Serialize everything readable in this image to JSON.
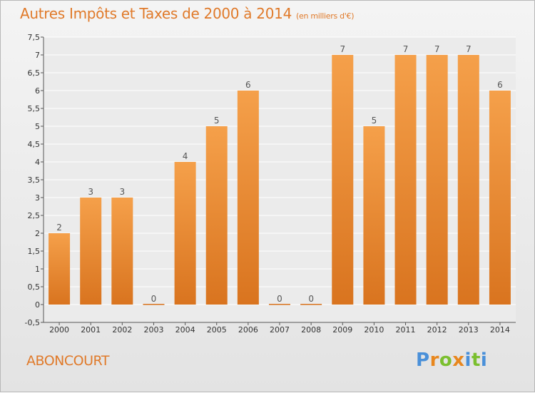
{
  "title": "Autres Impôts et Taxes de 2000 à 2014",
  "unit_note": "(en milliers d'€)",
  "commune": "ABONCOURT",
  "logo": {
    "letters": [
      "P",
      "r",
      "o",
      "x",
      "i",
      "t",
      "i"
    ],
    "colors": [
      "#4a90d9",
      "#e8871e",
      "#7bbf2f",
      "#e8871e",
      "#4a90d9",
      "#7bbf2f",
      "#4a90d9"
    ]
  },
  "colors": {
    "bar_light": "#f5a04a",
    "bar_dark": "#d9741f",
    "accent": "#e07a2a"
  },
  "chart_data": {
    "type": "bar",
    "title": "Autres Impôts et Taxes de 2000 à 2014",
    "subtitle": "(en milliers d'€)",
    "categories": [
      "2000",
      "2001",
      "2002",
      "2003",
      "2004",
      "2005",
      "2006",
      "2007",
      "2008",
      "2009",
      "2010",
      "2011",
      "2012",
      "2013",
      "2014"
    ],
    "values": [
      2,
      3,
      3,
      0,
      4,
      5,
      6,
      0,
      0,
      7,
      5,
      7,
      7,
      7,
      6
    ],
    "ylim": [
      -0.5,
      7.5
    ],
    "yticks": [
      "-0,5",
      "0",
      "0,5",
      "1",
      "1,5",
      "2",
      "2,5",
      "3",
      "3,5",
      "4",
      "4,5",
      "5",
      "5,5",
      "6",
      "6,5",
      "7",
      "7,5"
    ],
    "ytick_values": [
      -0.5,
      0,
      0.5,
      1,
      1.5,
      2,
      2.5,
      3,
      3.5,
      4,
      4.5,
      5,
      5.5,
      6,
      6.5,
      7,
      7.5
    ],
    "grid": true,
    "xlabel": "",
    "ylabel": ""
  }
}
